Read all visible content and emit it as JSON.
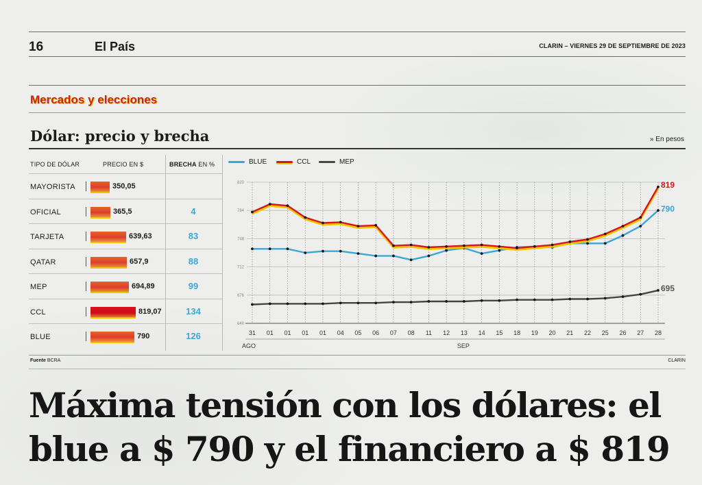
{
  "header": {
    "page_number": "16",
    "section": "El País",
    "dateline": "CLARIN – VIERNES 29 DE SEPTIEMBRE DE 2023"
  },
  "kicker": "Mercados y elecciones",
  "chart_title": "Dólar: precio y brecha",
  "unit_note": "» En pesos",
  "table": {
    "headers": {
      "type": "TIPO DE DÓLAR",
      "price": "PRECIO EN $",
      "gap_bold": "BRECHA",
      "gap_rest": " EN %"
    },
    "rows": [
      {
        "name": "MAYORISTA",
        "price": 350.05,
        "price_label": "350,05",
        "gap": ""
      },
      {
        "name": "OFICIAL",
        "price": 365.5,
        "price_label": "365,5",
        "gap": "4"
      },
      {
        "name": "TARJETA",
        "price": 639.63,
        "price_label": "639,63",
        "gap": "83"
      },
      {
        "name": "QATAR",
        "price": 657.9,
        "price_label": "657,9",
        "gap": "88"
      },
      {
        "name": "MEP",
        "price": 694.89,
        "price_label": "694,89",
        "gap": "99"
      },
      {
        "name": "CCL",
        "price": 819.07,
        "price_label": "819,07",
        "gap": "134"
      },
      {
        "name": "BLUE",
        "price": 790,
        "price_label": "790",
        "gap": "126"
      }
    ]
  },
  "chart_data": {
    "type": "line",
    "x": [
      "31",
      "01",
      "01",
      "01",
      "01",
      "04",
      "05",
      "06",
      "07",
      "08",
      "11",
      "12",
      "13",
      "14",
      "15",
      "18",
      "19",
      "20",
      "21",
      "22",
      "25",
      "26",
      "27",
      "28"
    ],
    "month_labels": [
      {
        "label": "AGO",
        "at_index": 0
      },
      {
        "label": "SEP",
        "at_index": 12
      }
    ],
    "y_ticks": [
      "820",
      "784",
      "748",
      "712",
      "676",
      "640"
    ],
    "ylim": [
      640,
      820
    ],
    "grid": true,
    "legend_position": "top-left",
    "series": [
      {
        "name": "BLUE",
        "color": "#3aa6d8",
        "values": [
          735,
          735,
          735,
          730,
          732,
          732,
          729,
          726,
          726,
          721,
          726,
          733,
          736,
          729,
          733,
          737,
          738,
          737,
          742,
          742,
          742,
          752,
          764,
          784
        ],
        "end_label": "790"
      },
      {
        "name": "CCL",
        "color": "#d8151f",
        "shadow": "#f0c400",
        "values": [
          782,
          792,
          790,
          775,
          768,
          769,
          764,
          765,
          739,
          740,
          737,
          738,
          739,
          740,
          738,
          736,
          738,
          740,
          744,
          747,
          754,
          764,
          775,
          814
        ],
        "end_label": "819"
      },
      {
        "name": "MEP",
        "color": "#444444",
        "values": [
          664,
          665,
          665,
          665,
          665,
          666,
          666,
          666,
          667,
          667,
          668,
          668,
          668,
          669,
          669,
          670,
          670,
          670,
          671,
          671,
          672,
          674,
          677,
          682
        ],
        "end_label": "695"
      }
    ]
  },
  "footer": {
    "source_bold": "Fuente",
    "source_rest": "BCRA",
    "credit": "CLARIN"
  },
  "headline": "Máxima tensión con los dólares: el blue a $ 790 y el financiero a $ 819"
}
